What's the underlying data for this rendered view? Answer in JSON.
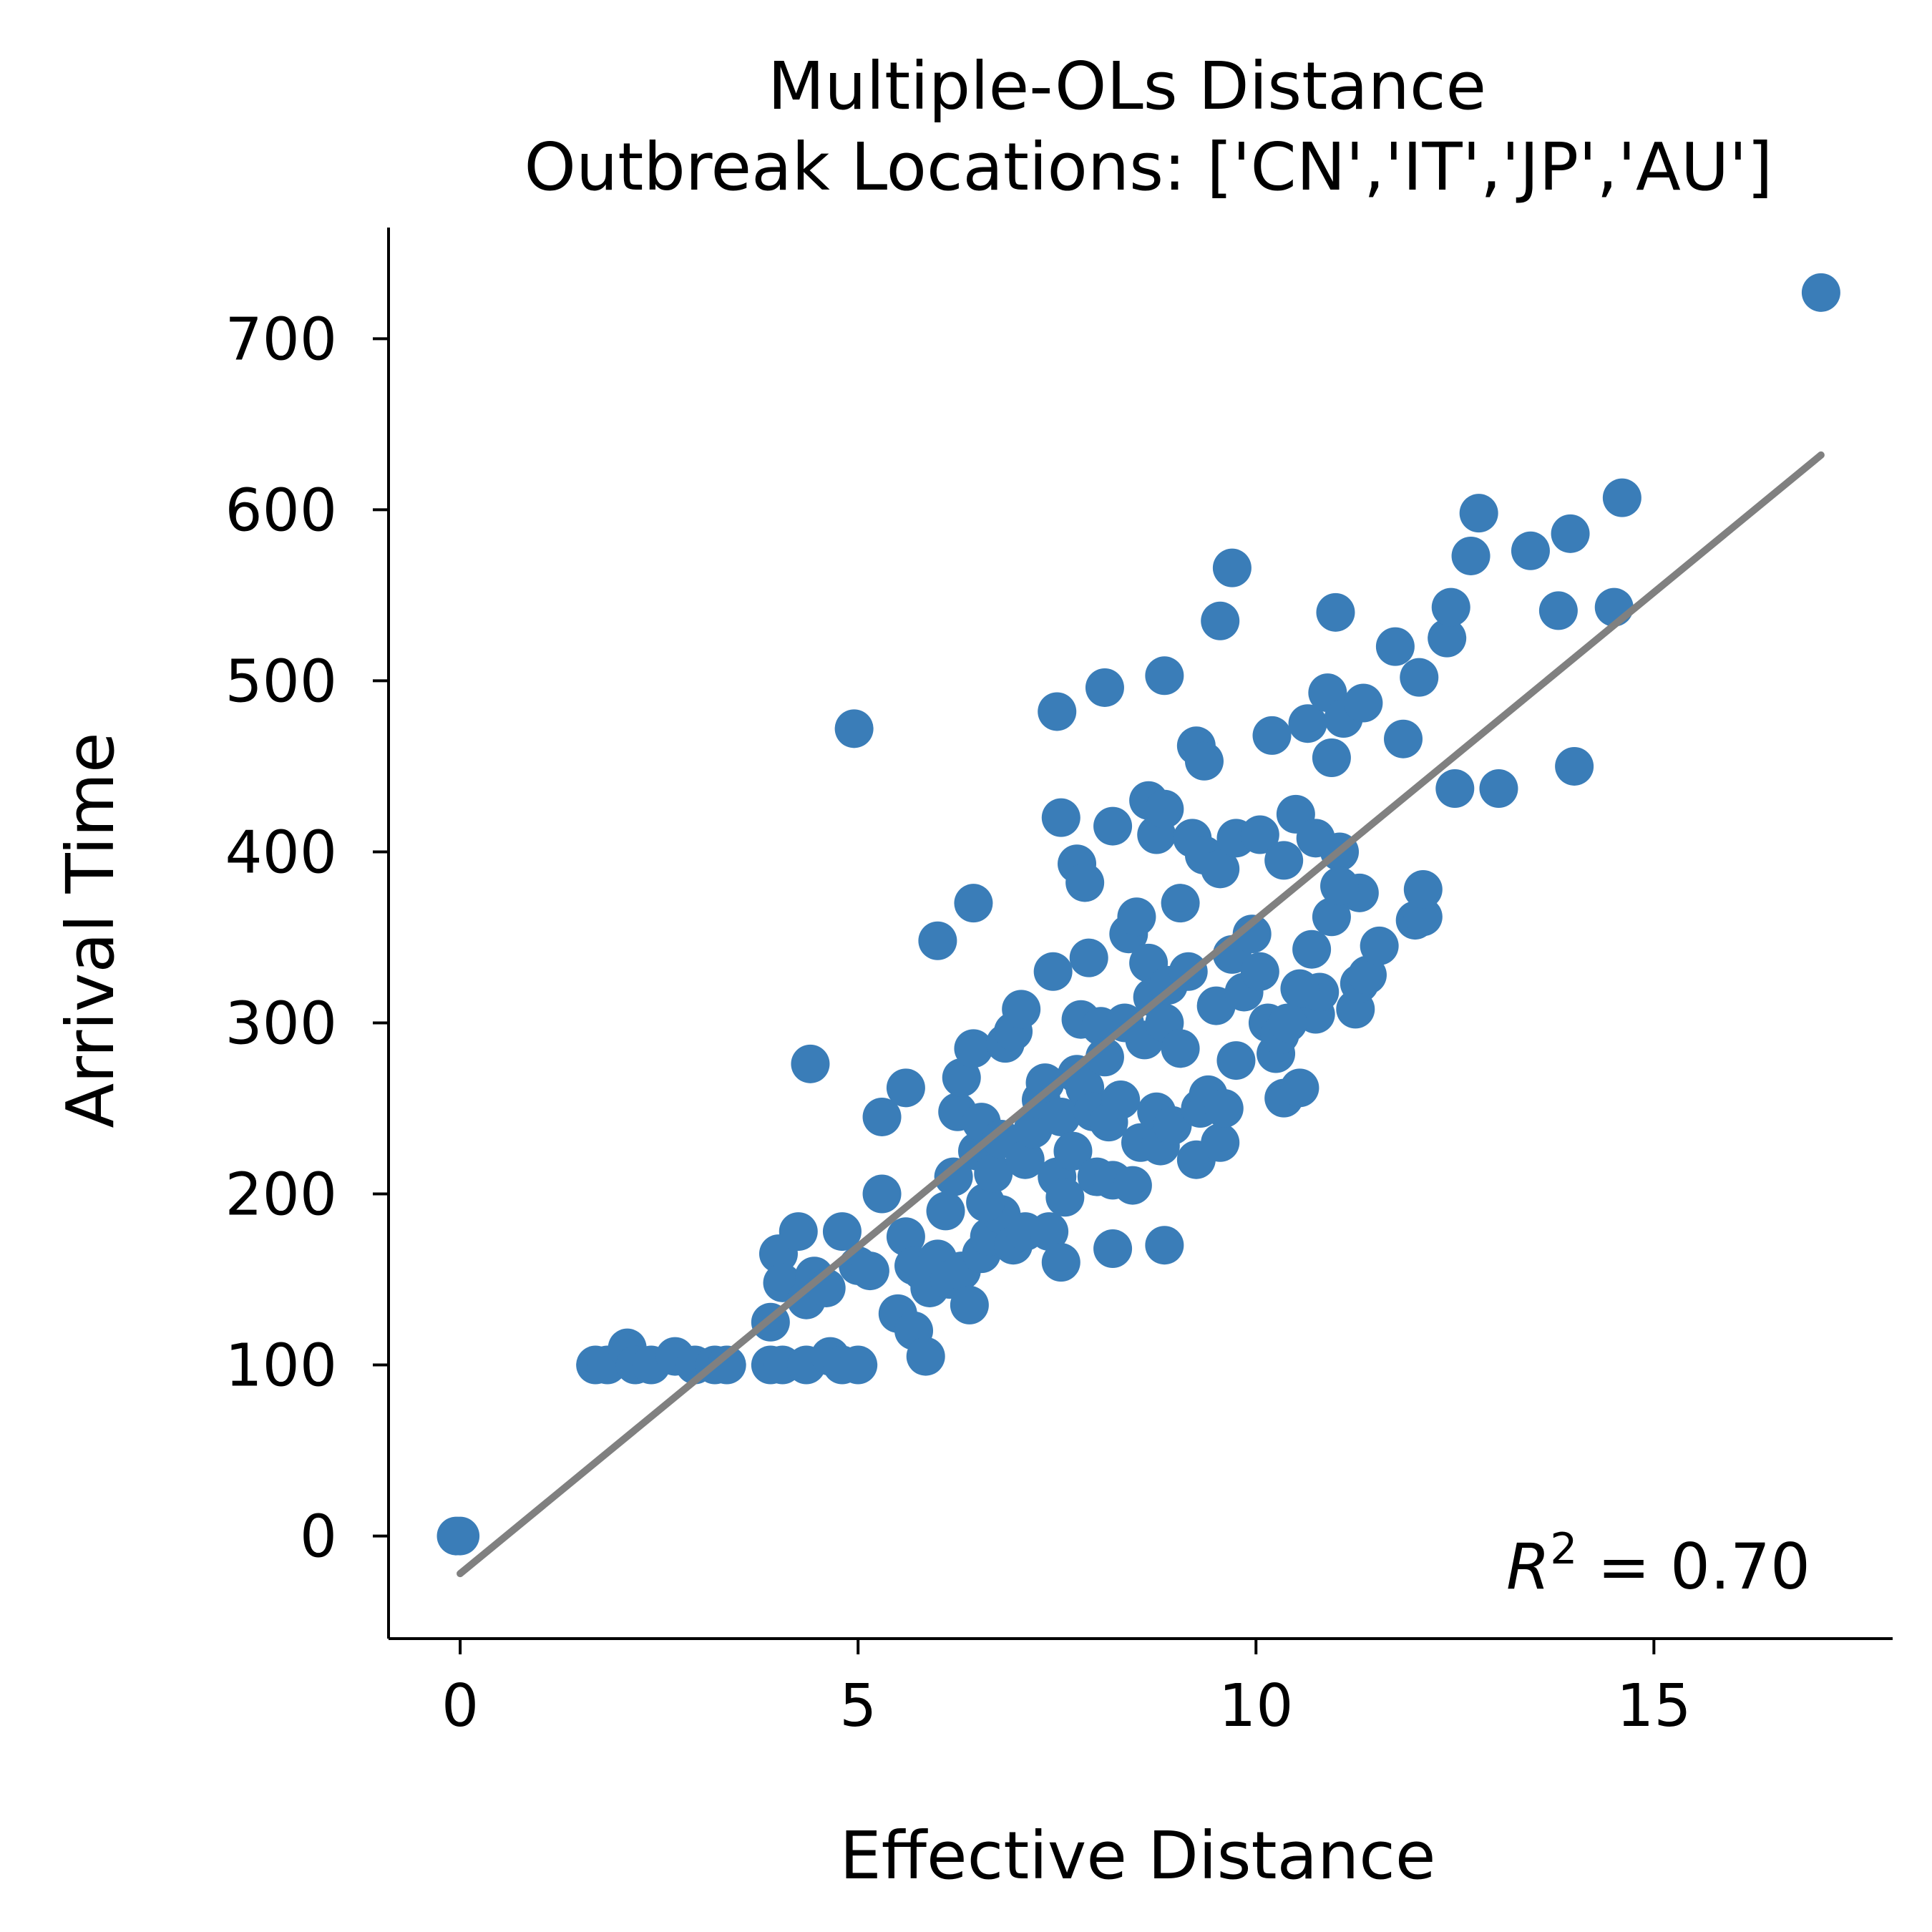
{
  "chart_data": {
    "type": "scatter",
    "title": "Multiple-OLs Distance",
    "subtitle": "Outbreak Locations: ['CN','IT','JP','AU']",
    "xlabel": "Effective Distance",
    "ylabel": "Arrival Time",
    "xlim": [
      -0.9,
      18.0
    ],
    "ylim": [
      -60,
      765
    ],
    "xticks": [
      0,
      5,
      10,
      15
    ],
    "yticks": [
      0,
      100,
      200,
      300,
      400,
      500,
      600,
      700
    ],
    "grid": false,
    "point_color": "#3a7db8",
    "line_color": "#808080",
    "annotation": {
      "prefix": "R",
      "superscript": "2",
      "suffix": " = 0.70"
    },
    "regression_line": {
      "x": [
        0.0,
        17.1
      ],
      "y": [
        -22,
        632
      ]
    },
    "points": [
      [
        0.0,
        0
      ],
      [
        -0.05,
        0
      ],
      [
        1.7,
        100
      ],
      [
        1.85,
        100
      ],
      [
        2.1,
        110
      ],
      [
        2.2,
        100
      ],
      [
        2.4,
        100
      ],
      [
        2.7,
        105
      ],
      [
        2.95,
        100
      ],
      [
        3.2,
        100
      ],
      [
        3.35,
        100
      ],
      [
        3.9,
        100
      ],
      [
        4.05,
        100
      ],
      [
        4.35,
        100
      ],
      [
        4.65,
        105
      ],
      [
        4.8,
        100
      ],
      [
        5.0,
        100
      ],
      [
        3.9,
        125
      ],
      [
        4.0,
        165
      ],
      [
        4.05,
        148
      ],
      [
        4.25,
        178
      ],
      [
        4.35,
        138
      ],
      [
        4.45,
        152
      ],
      [
        4.6,
        145
      ],
      [
        4.8,
        178
      ],
      [
        5.0,
        158
      ],
      [
        5.15,
        155
      ],
      [
        5.3,
        200
      ],
      [
        5.5,
        130
      ],
      [
        5.6,
        175
      ],
      [
        5.7,
        120
      ],
      [
        5.8,
        155
      ],
      [
        5.85,
        105
      ],
      [
        5.7,
        158
      ],
      [
        5.9,
        145
      ],
      [
        6.0,
        162
      ],
      [
        6.15,
        150
      ],
      [
        6.3,
        155
      ],
      [
        6.4,
        135
      ],
      [
        6.55,
        165
      ],
      [
        6.65,
        175
      ],
      [
        6.8,
        188
      ],
      [
        6.95,
        170
      ],
      [
        7.1,
        178
      ],
      [
        5.3,
        245
      ],
      [
        5.6,
        262
      ],
      [
        6.0,
        348
      ],
      [
        6.45,
        370
      ],
      [
        4.4,
        276
      ],
      [
        4.95,
        472
      ],
      [
        6.1,
        190
      ],
      [
        6.2,
        210
      ],
      [
        6.25,
        248
      ],
      [
        6.3,
        268
      ],
      [
        6.45,
        285
      ],
      [
        6.5,
        225
      ],
      [
        6.55,
        242
      ],
      [
        6.6,
        195
      ],
      [
        6.7,
        212
      ],
      [
        6.8,
        232
      ],
      [
        6.85,
        288
      ],
      [
        6.95,
        295
      ],
      [
        7.05,
        308
      ],
      [
        7.1,
        220
      ],
      [
        7.2,
        238
      ],
      [
        7.3,
        255
      ],
      [
        7.35,
        265
      ],
      [
        7.45,
        330
      ],
      [
        7.5,
        210
      ],
      [
        7.55,
        245
      ],
      [
        7.4,
        178
      ],
      [
        7.55,
        160
      ],
      [
        7.6,
        198
      ],
      [
        7.7,
        225
      ],
      [
        7.75,
        270
      ],
      [
        7.8,
        302
      ],
      [
        7.85,
        262
      ],
      [
        7.9,
        338
      ],
      [
        7.95,
        248
      ],
      [
        8.0,
        210
      ],
      [
        8.05,
        298
      ],
      [
        8.1,
        280
      ],
      [
        8.15,
        242
      ],
      [
        8.2,
        208
      ],
      [
        8.3,
        255
      ],
      [
        8.35,
        300
      ],
      [
        8.4,
        352
      ],
      [
        8.5,
        362
      ],
      [
        8.55,
        230
      ],
      [
        8.6,
        290
      ],
      [
        8.2,
        168
      ],
      [
        8.45,
        205
      ],
      [
        8.85,
        170
      ],
      [
        8.65,
        335
      ],
      [
        8.7,
        315
      ],
      [
        8.75,
        248
      ],
      [
        8.8,
        228
      ],
      [
        8.85,
        300
      ],
      [
        8.9,
        322
      ],
      [
        8.95,
        240
      ],
      [
        9.05,
        285
      ],
      [
        9.15,
        330
      ],
      [
        9.25,
        220
      ],
      [
        9.3,
        250
      ],
      [
        9.4,
        258
      ],
      [
        9.5,
        310
      ],
      [
        9.55,
        230
      ],
      [
        9.6,
        250
      ],
      [
        9.7,
        340
      ],
      [
        9.75,
        278
      ],
      [
        9.85,
        318
      ],
      [
        9.95,
        352
      ],
      [
        10.05,
        330
      ],
      [
        7.5,
        482
      ],
      [
        8.1,
        496
      ],
      [
        8.85,
        503
      ],
      [
        9.55,
        535
      ],
      [
        9.7,
        566
      ],
      [
        9.25,
        462
      ],
      [
        9.35,
        453
      ],
      [
        7.55,
        420
      ],
      [
        7.75,
        393
      ],
      [
        7.85,
        382
      ],
      [
        8.2,
        415
      ],
      [
        8.65,
        430
      ],
      [
        8.75,
        410
      ],
      [
        8.85,
        425
      ],
      [
        9.05,
        370
      ],
      [
        9.2,
        408
      ],
      [
        9.35,
        398
      ],
      [
        9.55,
        390
      ],
      [
        9.75,
        408
      ],
      [
        10.05,
        410
      ],
      [
        10.2,
        468
      ],
      [
        10.35,
        395
      ],
      [
        10.5,
        422
      ],
      [
        10.65,
        475
      ],
      [
        10.75,
        408
      ],
      [
        10.9,
        493
      ],
      [
        10.95,
        455
      ],
      [
        11.0,
        540
      ],
      [
        11.05,
        400
      ],
      [
        11.1,
        478
      ],
      [
        11.3,
        376
      ],
      [
        11.35,
        487
      ],
      [
        11.75,
        520
      ],
      [
        11.85,
        466
      ],
      [
        12.0,
        360
      ],
      [
        12.05,
        502
      ],
      [
        12.1,
        362
      ],
      [
        12.1,
        378
      ],
      [
        12.4,
        525
      ],
      [
        12.45,
        543
      ],
      [
        12.5,
        437
      ],
      [
        12.7,
        573
      ],
      [
        12.8,
        598
      ],
      [
        13.05,
        437
      ],
      [
        13.45,
        576
      ],
      [
        13.8,
        541
      ],
      [
        13.95,
        586
      ],
      [
        14.0,
        450
      ],
      [
        14.5,
        543
      ],
      [
        14.6,
        607
      ],
      [
        17.1,
        727
      ],
      [
        10.15,
        300
      ],
      [
        10.25,
        282
      ],
      [
        10.3,
        293
      ],
      [
        10.35,
        256
      ],
      [
        10.55,
        262
      ],
      [
        10.7,
        343
      ],
      [
        10.75,
        305
      ],
      [
        10.8,
        318
      ],
      [
        10.95,
        362
      ],
      [
        11.05,
        380
      ],
      [
        11.25,
        308
      ],
      [
        11.3,
        323
      ],
      [
        11.4,
        328
      ],
      [
        11.55,
        345
      ],
      [
        10.55,
        320
      ],
      [
        10.4,
        300
      ]
    ]
  }
}
